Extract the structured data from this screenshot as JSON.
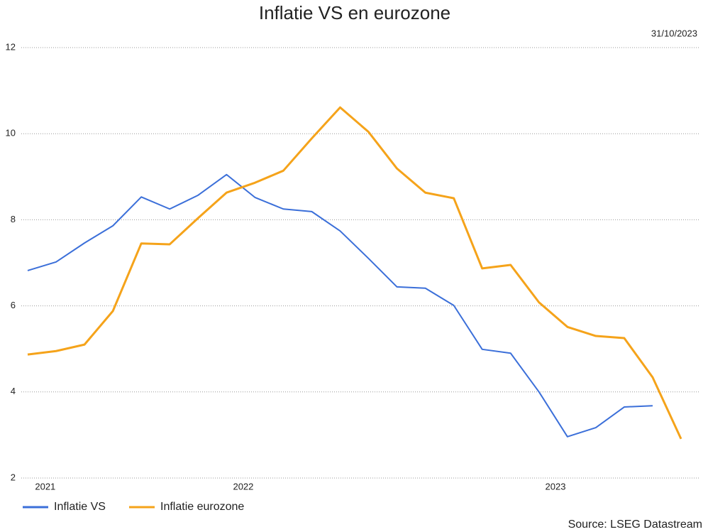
{
  "chart_data": {
    "type": "line",
    "title": "Inflatie VS en eurozone",
    "subtitle": "31/10/2023",
    "source": "Source: LSEG Datastream",
    "xlim": [
      0,
      23
    ],
    "xticks": [
      {
        "value": 0.62,
        "label": "2021"
      },
      {
        "value": 7.59,
        "label": "2022"
      },
      {
        "value": 18.58,
        "label": "2023"
      }
    ],
    "ylim": [
      2,
      12
    ],
    "yticks": [
      2,
      4,
      6,
      8,
      10,
      12
    ],
    "grid": true,
    "legend": "bottom-left",
    "series": [
      {
        "name": "Inflatie VS",
        "color": "#3b6fd9",
        "values": [
          6.82,
          7.02,
          7.46,
          7.86,
          8.53,
          8.25,
          8.57,
          9.05,
          8.52,
          8.25,
          8.19,
          7.74,
          7.1,
          6.44,
          6.41,
          6.01,
          4.99,
          4.9,
          4.0,
          2.96,
          3.17,
          3.65,
          3.68,
          null
        ]
      },
      {
        "name": "Inflatie eurozone",
        "color": "#f5a31a",
        "values": [
          4.87,
          4.95,
          5.1,
          5.88,
          7.45,
          7.43,
          8.04,
          8.63,
          8.86,
          9.14,
          9.89,
          10.61,
          10.04,
          9.19,
          8.63,
          8.5,
          6.87,
          6.95,
          6.08,
          5.51,
          5.3,
          5.25,
          4.34,
          2.91
        ]
      }
    ]
  }
}
